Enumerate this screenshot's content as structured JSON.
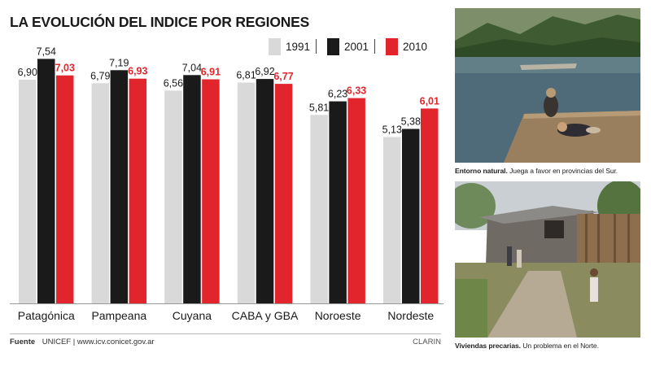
{
  "title": "LA EVOLUCIÓN DEL INDICE POR REGIONES",
  "legend": [
    {
      "label": "1991",
      "color": "#d9d9d9"
    },
    {
      "label": "2001",
      "color": "#1a1a1a"
    },
    {
      "label": "2010",
      "color": "#e2252c"
    }
  ],
  "chart_data": {
    "type": "bar",
    "title": "LA EVOLUCIÓN DEL INDICE POR REGIONES",
    "categories": [
      "Patagónica",
      "Pampeana",
      "Cuyana",
      "CABA y GBA",
      "Noroeste",
      "Nordeste"
    ],
    "series": [
      {
        "name": "1991",
        "color": "#d9d9d9",
        "values": [
          6.9,
          6.79,
          6.56,
          6.81,
          5.81,
          5.13
        ]
      },
      {
        "name": "2001",
        "color": "#1a1a1a",
        "values": [
          7.54,
          7.19,
          7.04,
          6.92,
          6.23,
          5.38
        ]
      },
      {
        "name": "2010",
        "color": "#e2252c",
        "values": [
          7.03,
          6.93,
          6.91,
          6.77,
          6.33,
          6.01
        ]
      }
    ],
    "value_labels": [
      [
        "6,90",
        "6,79",
        "6,56",
        "6,81",
        "5,81",
        "5,13"
      ],
      [
        "7,54",
        "7,19",
        "7,04",
        "6,92",
        "6,23",
        "5,38"
      ],
      [
        "7,03",
        "6,93",
        "6,91",
        "6,77",
        "6,33",
        "6,01"
      ]
    ],
    "label_colors": [
      "#1a1a1a",
      "#1a1a1a",
      "#e2252c"
    ],
    "ylim": [
      0,
      7.8
    ],
    "xlabel": "",
    "ylabel": "",
    "grid": false,
    "legend_position": "top-right"
  },
  "footer": {
    "source_label": "Fuente",
    "source_text": "UNICEF | www.icv.conicet.gov.ar",
    "credit": "CLARIN"
  },
  "photos": {
    "top": {
      "caption_bold": "Entorno natural.",
      "caption_text": "Juega a favor en provincias del Sur."
    },
    "bottom": {
      "caption_bold": "Viviendas precarias.",
      "caption_text": "Un problema en el Norte."
    }
  }
}
